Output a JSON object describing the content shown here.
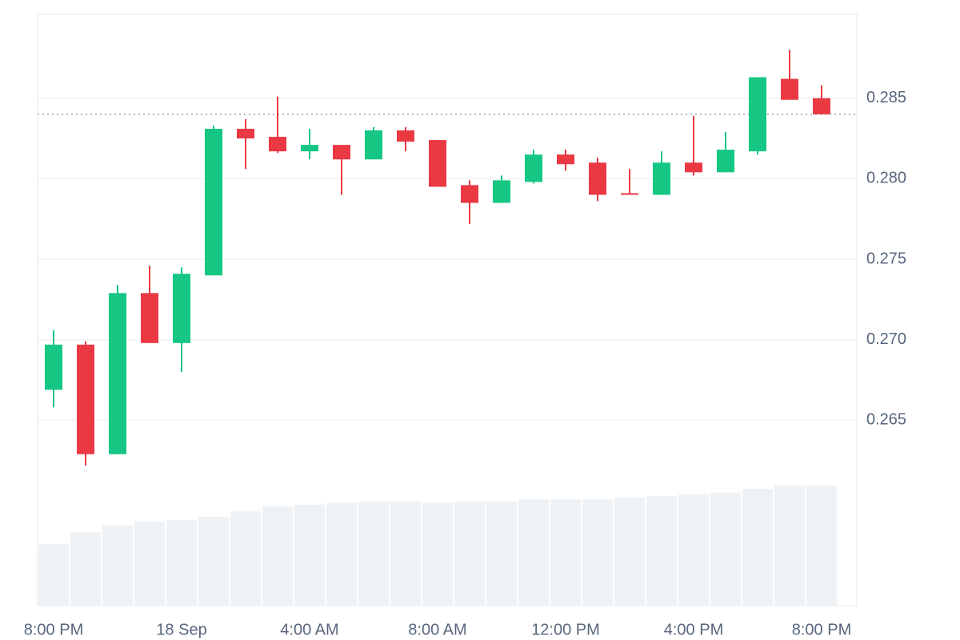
{
  "chart_data": {
    "type": "candlestick",
    "categories": [
      "8:00 PM",
      null,
      null,
      null,
      "18 Sep",
      null,
      null,
      null,
      "4:00 AM",
      null,
      null,
      null,
      "8:00 AM",
      null,
      null,
      null,
      "12:00 PM",
      null,
      null,
      null,
      "4:00 PM",
      null,
      null,
      null,
      "8:00 PM"
    ],
    "open": [
      0.2669,
      0.2697,
      0.2629,
      0.2729,
      0.2698,
      0.274,
      0.2831,
      0.2826,
      0.2817,
      0.2821,
      0.2812,
      0.283,
      0.2824,
      0.2796,
      0.2785,
      0.2798,
      0.2815,
      0.281,
      0.2791,
      0.279,
      0.281,
      0.2804,
      0.2817,
      0.2862,
      0.285
    ],
    "high": [
      0.2706,
      0.2699,
      0.2734,
      0.2746,
      0.2745,
      0.2833,
      0.2837,
      0.2851,
      0.2831,
      0.2821,
      0.2832,
      0.2832,
      0.2824,
      0.2799,
      0.2802,
      0.2818,
      0.2818,
      0.2813,
      0.2806,
      0.2817,
      0.2839,
      0.2829,
      0.2863,
      0.288,
      0.2858
    ],
    "low": [
      0.2658,
      0.2622,
      0.2629,
      0.2698,
      0.268,
      0.274,
      0.2806,
      0.2816,
      0.2812,
      0.279,
      0.2812,
      0.2817,
      0.2795,
      0.2772,
      0.2785,
      0.2797,
      0.2805,
      0.2786,
      0.279,
      0.279,
      0.2802,
      0.2804,
      0.2815,
      0.2849,
      0.284
    ],
    "close": [
      0.2697,
      0.2629,
      0.2729,
      0.2698,
      0.2741,
      0.2831,
      0.2825,
      0.2817,
      0.2821,
      0.2812,
      0.283,
      0.2823,
      0.2795,
      0.2785,
      0.2799,
      0.2815,
      0.2809,
      0.279,
      0.279,
      0.281,
      0.2804,
      0.2818,
      0.2863,
      0.2849,
      0.284
    ],
    "volume": [
      71,
      85,
      93,
      97,
      99,
      103,
      109,
      115,
      117,
      119,
      121,
      121,
      119,
      121,
      121,
      123,
      123,
      123,
      125,
      127,
      129,
      131,
      135,
      139,
      139
    ],
    "up_color": "#16c784",
    "down_color": "#ea3943",
    "volume_color": "#eff2f5",
    "price_line": 0.284,
    "ylim": [
      0.2535,
      0.2902
    ],
    "yticks": [
      0.265,
      {
        "value": 0.27,
        "label": "0.270"
      },
      0.275,
      {
        "value": 0.28,
        "label": "0.280"
      },
      0.285
    ],
    "grid": true
  }
}
